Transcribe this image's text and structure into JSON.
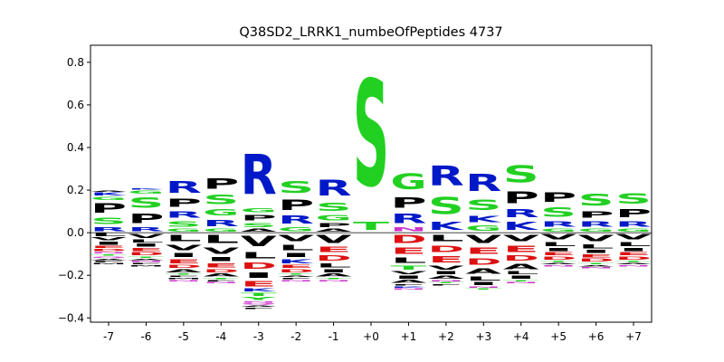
{
  "chart_data": {
    "type": "sequence-logo",
    "title": "Q38SD2_LRRK1_numbeOfPeptides 4737",
    "xlabel": "",
    "ylabel": "",
    "ylim": [
      -0.42,
      0.88
    ],
    "y_ticks": [
      "−0.4",
      "−0.2",
      "0.0",
      "0.2",
      "0.4",
      "0.6",
      "0.8"
    ],
    "y_tick_values": [
      -0.4,
      -0.2,
      0.0,
      0.2,
      0.4,
      0.6,
      0.8
    ],
    "positions": [
      "-7",
      "-6",
      "-5",
      "-4",
      "-3",
      "-2",
      "-1",
      "+0",
      "+1",
      "+2",
      "+3",
      "+4",
      "+5",
      "+6",
      "+7"
    ],
    "colors": {
      "R": "#0019c8",
      "K": "#0019c8",
      "H": "#0019c8",
      "S": "#22d022",
      "T": "#22d022",
      "G": "#22d022",
      "Y": "#22d022",
      "P": "#000000",
      "A": "#000000",
      "V": "#000000",
      "L": "#000000",
      "I": "#000000",
      "M": "#000000",
      "F": "#000000",
      "W": "#000000",
      "D": "#dd1111",
      "E": "#dd1111",
      "N": "#cc33cc",
      "Q": "#cc33cc",
      "C": "#22d022"
    },
    "stacks": [
      {
        "pos": "-7",
        "pos_letters": [
          [
            "R",
            0.03
          ],
          [
            "S",
            0.05
          ],
          [
            "P",
            0.07
          ],
          [
            "G",
            0.02
          ],
          [
            "K",
            0.02
          ],
          [
            "A",
            0.01
          ]
        ],
        "neg_letters": [
          [
            "L",
            0.02
          ],
          [
            "V",
            0.02
          ],
          [
            "I",
            0.02
          ],
          [
            "E",
            0.015
          ],
          [
            "D",
            0.015
          ],
          [
            "N",
            0.01
          ],
          [
            "T",
            0.01
          ],
          [
            "Q",
            0.01
          ],
          [
            "A",
            0.01
          ],
          [
            "F",
            0.01
          ],
          [
            "M",
            0.01
          ]
        ]
      },
      {
        "pos": "-6",
        "pos_letters": [
          [
            "R",
            0.03
          ],
          [
            "P",
            0.07
          ],
          [
            "S",
            0.08
          ],
          [
            "G",
            0.02
          ],
          [
            "K",
            0.01
          ]
        ],
        "neg_letters": [
          [
            "V",
            0.03
          ],
          [
            "L",
            0.02
          ],
          [
            "I",
            0.02
          ],
          [
            "E",
            0.02
          ],
          [
            "D",
            0.02
          ],
          [
            "T",
            0.01
          ],
          [
            "A",
            0.01
          ],
          [
            "N",
            0.01
          ],
          [
            "F",
            0.01
          ],
          [
            "M",
            0.01
          ]
        ]
      },
      {
        "pos": "-5",
        "pos_letters": [
          [
            "G",
            0.02
          ],
          [
            "S",
            0.04
          ],
          [
            "R",
            0.05
          ],
          [
            "P",
            0.06
          ],
          [
            "R",
            0.09
          ]
        ],
        "neg_letters": [
          [
            "L",
            0.05
          ],
          [
            "V",
            0.04
          ],
          [
            "I",
            0.03
          ],
          [
            "E",
            0.03
          ],
          [
            "D",
            0.02
          ],
          [
            "A",
            0.02
          ],
          [
            "T",
            0.01
          ],
          [
            "F",
            0.01
          ],
          [
            "M",
            0.01
          ],
          [
            "N",
            0.01
          ]
        ]
      },
      {
        "pos": "-4",
        "pos_letters": [
          [
            "G",
            0.02
          ],
          [
            "R",
            0.05
          ],
          [
            "G",
            0.05
          ],
          [
            "S",
            0.07
          ],
          [
            "P",
            0.08
          ]
        ],
        "neg_letters": [
          [
            "L",
            0.06
          ],
          [
            "V",
            0.05
          ],
          [
            "I",
            0.03
          ],
          [
            "E",
            0.03
          ],
          [
            "D",
            0.02
          ],
          [
            "A",
            0.02
          ],
          [
            "T",
            0.01
          ],
          [
            "F",
            0.01
          ],
          [
            "N",
            0.01
          ]
        ]
      },
      {
        "pos": "-3",
        "pos_letters": [
          [
            "A",
            0.02
          ],
          [
            "S",
            0.03
          ],
          [
            "P",
            0.04
          ],
          [
            "G",
            0.03
          ],
          [
            "R",
            0.3
          ]
        ],
        "neg_letters": [
          [
            "V",
            0.08
          ],
          [
            "L",
            0.05
          ],
          [
            "D",
            0.05
          ],
          [
            "I",
            0.04
          ],
          [
            "E",
            0.04
          ],
          [
            "K",
            0.02
          ],
          [
            "T",
            0.02
          ],
          [
            "Y",
            0.02
          ],
          [
            "N",
            0.01
          ],
          [
            "Q",
            0.01
          ],
          [
            "A",
            0.01
          ],
          [
            "F",
            0.01
          ]
        ]
      },
      {
        "pos": "-2",
        "pos_letters": [
          [
            "G",
            0.03
          ],
          [
            "R",
            0.06
          ],
          [
            "P",
            0.08
          ],
          [
            "S",
            0.09
          ]
        ],
        "neg_letters": [
          [
            "V",
            0.05
          ],
          [
            "L",
            0.04
          ],
          [
            "I",
            0.03
          ],
          [
            "K",
            0.03
          ],
          [
            "E",
            0.02
          ],
          [
            "D",
            0.02
          ],
          [
            "T",
            0.01
          ],
          [
            "A",
            0.01
          ],
          [
            "F",
            0.01
          ],
          [
            "N",
            0.01
          ]
        ]
      },
      {
        "pos": "-1",
        "pos_letters": [
          [
            "A",
            0.02
          ],
          [
            "P",
            0.03
          ],
          [
            "G",
            0.04
          ],
          [
            "S",
            0.06
          ],
          [
            "R",
            0.12
          ]
        ],
        "neg_letters": [
          [
            "V",
            0.06
          ],
          [
            "E",
            0.04
          ],
          [
            "D",
            0.04
          ],
          [
            "L",
            0.03
          ],
          [
            "I",
            0.02
          ],
          [
            "A",
            0.02
          ],
          [
            "T",
            0.01
          ],
          [
            "N",
            0.01
          ]
        ]
      },
      {
        "pos": "+0",
        "pos_letters": [
          [
            "T",
            0.06
          ],
          [
            "S",
            0.8
          ]
        ],
        "neg_letters": []
      },
      {
        "pos": "+1",
        "pos_letters": [
          [
            "N",
            0.03
          ],
          [
            "R",
            0.07
          ],
          [
            "P",
            0.08
          ],
          [
            "G",
            0.12
          ]
        ],
        "neg_letters": [
          [
            "D",
            0.06
          ],
          [
            "E",
            0.05
          ],
          [
            "L",
            0.04
          ],
          [
            "T",
            0.03
          ],
          [
            "V",
            0.02
          ],
          [
            "I",
            0.02
          ],
          [
            "A",
            0.02
          ],
          [
            "F",
            0.01
          ],
          [
            "K",
            0.01
          ],
          [
            "N",
            0.01
          ]
        ]
      },
      {
        "pos": "+2",
        "pos_letters": [
          [
            "K",
            0.06
          ],
          [
            "S",
            0.13
          ],
          [
            "R",
            0.15
          ]
        ],
        "neg_letters": [
          [
            "L",
            0.05
          ],
          [
            "D",
            0.05
          ],
          [
            "E",
            0.05
          ],
          [
            "V",
            0.03
          ],
          [
            "I",
            0.02
          ],
          [
            "A",
            0.02
          ],
          [
            "N",
            0.01
          ],
          [
            "T",
            0.01
          ],
          [
            "F",
            0.01
          ]
        ]
      },
      {
        "pos": "+3",
        "pos_letters": [
          [
            "G",
            0.04
          ],
          [
            "K",
            0.05
          ],
          [
            "S",
            0.08
          ],
          [
            "R",
            0.13
          ]
        ],
        "neg_letters": [
          [
            "V",
            0.06
          ],
          [
            "E",
            0.05
          ],
          [
            "D",
            0.05
          ],
          [
            "A",
            0.04
          ],
          [
            "L",
            0.03
          ],
          [
            "I",
            0.02
          ],
          [
            "N",
            0.01
          ],
          [
            "T",
            0.01
          ]
        ]
      },
      {
        "pos": "+4",
        "pos_letters": [
          [
            "K",
            0.06
          ],
          [
            "R",
            0.06
          ],
          [
            "P",
            0.09
          ],
          [
            "S",
            0.13
          ]
        ],
        "neg_letters": [
          [
            "V",
            0.05
          ],
          [
            "E",
            0.05
          ],
          [
            "D",
            0.04
          ],
          [
            "A",
            0.04
          ],
          [
            "L",
            0.02
          ],
          [
            "I",
            0.02
          ],
          [
            "T",
            0.01
          ],
          [
            "N",
            0.01
          ]
        ]
      },
      {
        "pos": "+5",
        "pos_letters": [
          [
            "G",
            0.02
          ],
          [
            "R",
            0.04
          ],
          [
            "S",
            0.07
          ],
          [
            "P",
            0.07
          ]
        ],
        "neg_letters": [
          [
            "V",
            0.04
          ],
          [
            "L",
            0.03
          ],
          [
            "I",
            0.02
          ],
          [
            "E",
            0.02
          ],
          [
            "D",
            0.02
          ],
          [
            "T",
            0.01
          ],
          [
            "A",
            0.01
          ],
          [
            "N",
            0.01
          ]
        ]
      },
      {
        "pos": "+6",
        "pos_letters": [
          [
            "G",
            0.02
          ],
          [
            "R",
            0.04
          ],
          [
            "P",
            0.05
          ],
          [
            "S",
            0.09
          ]
        ],
        "neg_letters": [
          [
            "V",
            0.05
          ],
          [
            "L",
            0.03
          ],
          [
            "I",
            0.02
          ],
          [
            "E",
            0.02
          ],
          [
            "D",
            0.02
          ],
          [
            "T",
            0.01
          ],
          [
            "A",
            0.01
          ],
          [
            "N",
            0.01
          ]
        ]
      },
      {
        "pos": "+7",
        "pos_letters": [
          [
            "G",
            0.02
          ],
          [
            "R",
            0.04
          ],
          [
            "P",
            0.06
          ],
          [
            "S",
            0.08
          ]
        ],
        "neg_letters": [
          [
            "V",
            0.04
          ],
          [
            "L",
            0.03
          ],
          [
            "I",
            0.02
          ],
          [
            "E",
            0.02
          ],
          [
            "D",
            0.02
          ],
          [
            "T",
            0.01
          ],
          [
            "A",
            0.01
          ],
          [
            "N",
            0.01
          ]
        ]
      }
    ]
  }
}
